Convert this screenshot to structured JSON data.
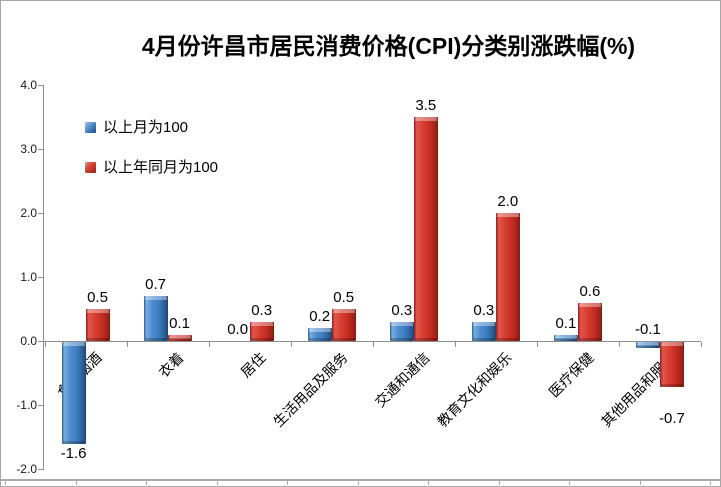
{
  "window": {
    "background": "#ffffff",
    "border_color": "#a6a6a6",
    "accent_blue": "#3d7cc0",
    "accent_red": "#c8362b"
  },
  "chart_data": {
    "type": "bar",
    "title": "4月份许昌市居民消费价格(CPI)分类别涨跌幅(%)",
    "categories": [
      "食品烟酒",
      "衣着",
      "居住",
      "生活用品及服务",
      "交通和通信",
      "教育文化和娱乐",
      "医疗保健",
      "其他用品和服务"
    ],
    "series": [
      {
        "name": "以上月为100",
        "color": "#3d7cc0",
        "values": [
          -1.6,
          0.7,
          0.0,
          0.2,
          0.3,
          0.3,
          0.1,
          -0.1
        ]
      },
      {
        "name": "以上年同月为100",
        "color": "#c8362b",
        "values": [
          0.5,
          0.1,
          0.3,
          0.5,
          3.5,
          2.0,
          0.6,
          -0.7
        ]
      }
    ],
    "ylim": [
      -2.0,
      4.0
    ],
    "ytick_labels": [
      "4.0",
      "3.0",
      "2.0",
      "1.0",
      "0.0",
      "-1.0",
      "-2.0"
    ],
    "ytick_values": [
      4.0,
      3.0,
      2.0,
      1.0,
      0.0,
      -1.0,
      -2.0
    ],
    "grid": false,
    "value_labels": "outside-end, 1 decimal",
    "legend_position": "upper-left-inside",
    "label_overrides": [
      {
        "series": 0,
        "index": 7,
        "place": "above-axis"
      },
      {
        "series": 1,
        "index": 7,
        "dy": 22
      }
    ]
  }
}
